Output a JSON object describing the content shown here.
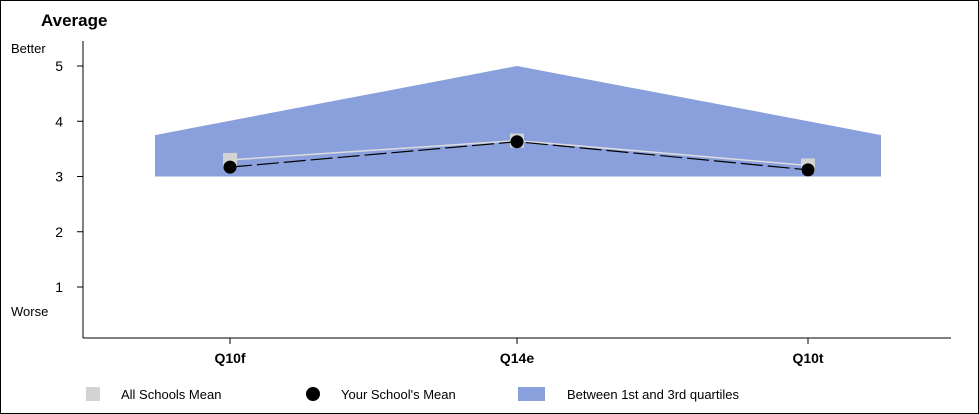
{
  "chart_data": {
    "type": "line",
    "title": "Average",
    "better_label": "Better",
    "worse_label": "Worse",
    "categories": [
      "Q10f",
      "Q14e",
      "Q10t"
    ],
    "ylim": [
      0,
      5
    ],
    "yticks": [
      1,
      2,
      3,
      4,
      5
    ],
    "grid": false,
    "legend_position": "bottom",
    "quartile_band": {
      "name": "Between 1st and 3rd quartiles",
      "lower": [
        3.0,
        3.0,
        3.0
      ],
      "upper": [
        4.0,
        5.0,
        4.0
      ],
      "edge_upper": [
        3.75,
        3.75
      ],
      "color": "#8aa0dc"
    },
    "series": [
      {
        "name": "All Schools Mean",
        "values": [
          3.3,
          3.65,
          3.2
        ],
        "color": "#d3d3d3"
      },
      {
        "name": "Your School's Mean",
        "values": [
          3.17,
          3.63,
          3.12
        ],
        "color": "#000000"
      }
    ]
  }
}
